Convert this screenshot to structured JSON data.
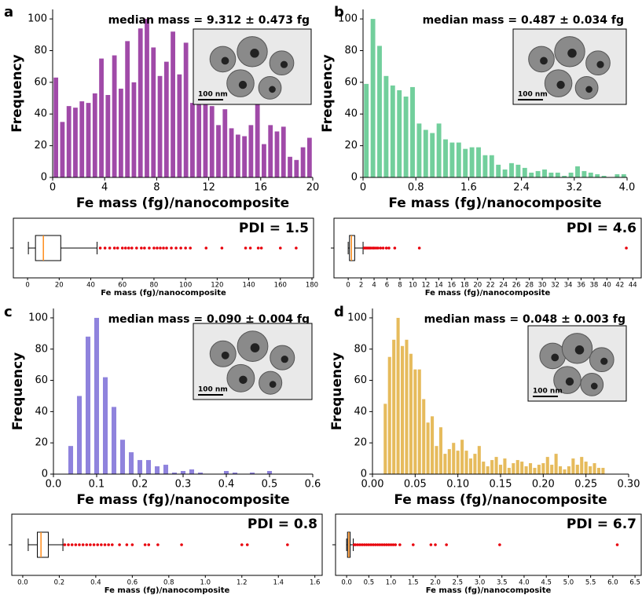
{
  "chart_data": [
    {
      "type": "histogram",
      "panel_label": "a",
      "title": "median mass = 9.312 ± 0.473 fg",
      "xlabel": "Fe mass (fg)/nanocomposite",
      "ylabel": "Frequency",
      "color": "#a04aa8",
      "inset_scale_label": "100 nm",
      "bins": [
        0,
        0.5,
        1,
        1.5,
        2,
        2.5,
        3,
        3.5,
        4,
        4.5,
        5,
        5.5,
        6,
        6.5,
        7,
        7.5,
        8,
        8.5,
        9,
        9.5,
        10,
        10.5,
        11,
        11.5,
        12,
        12.5,
        13,
        13.5,
        14,
        14.5,
        15,
        15.5,
        16,
        16.5,
        17,
        17.5,
        18,
        18.5,
        19,
        19.5,
        20
      ],
      "values": [
        63,
        35,
        45,
        44,
        48,
        47,
        53,
        75,
        52,
        77,
        56,
        86,
        60,
        94,
        100,
        82,
        64,
        73,
        92,
        65,
        85,
        47,
        57,
        56,
        45,
        33,
        43,
        31,
        27,
        26,
        33,
        47,
        21,
        33,
        29,
        32,
        13,
        11,
        19,
        25
      ],
      "xlim": [
        0,
        20
      ],
      "xticks": [
        0,
        4,
        8,
        12,
        16,
        20
      ],
      "ylim": [
        0,
        106
      ],
      "yticks": [
        0,
        20,
        40,
        60,
        80,
        100
      ]
    },
    {
      "type": "histogram",
      "panel_label": "b",
      "title": "median mass = 0.487 ± 0.034  fg",
      "xlabel": "Fe mass (fg)/nanocomposite",
      "ylabel": "Frequency",
      "color": "#72cf9c",
      "inset_scale_label": "100 nm",
      "bins": [
        0,
        0.1,
        0.2,
        0.3,
        0.4,
        0.5,
        0.6,
        0.7,
        0.8,
        0.9,
        1.0,
        1.1,
        1.2,
        1.3,
        1.4,
        1.5,
        1.6,
        1.7,
        1.8,
        1.9,
        2.0,
        2.1,
        2.2,
        2.3,
        2.4,
        2.5,
        2.6,
        2.7,
        2.8,
        2.9,
        3.0,
        3.1,
        3.2,
        3.3,
        3.4,
        3.5,
        3.6,
        3.7,
        3.8,
        3.9,
        4.0
      ],
      "values": [
        59,
        100,
        83,
        64,
        58,
        55,
        51,
        57,
        34,
        30,
        28,
        34,
        24,
        22,
        22,
        18,
        19,
        19,
        14,
        14,
        8,
        5,
        9,
        8,
        6,
        3,
        4,
        5,
        3,
        3,
        1,
        3,
        7,
        4,
        3,
        2,
        1,
        0,
        2,
        2
      ],
      "xlim": [
        0,
        4
      ],
      "xticks": [
        0,
        0.8,
        1.6,
        2.4,
        3.2,
        {
          "value": 4,
          "label": "4.0"
        }
      ],
      "ylim": [
        0,
        106
      ],
      "yticks": [
        0,
        20,
        40,
        60,
        80,
        100
      ]
    },
    {
      "type": "box",
      "text": "PDI = 1.5",
      "xlabel": "Fe mass (fg)/nanocomposite",
      "color": "#ff8c1a",
      "outlier_color": "#e8000b",
      "whisker_low": 0.5,
      "q1": 5,
      "median": 10,
      "q3": 21,
      "whisker_high": 44,
      "outliers": [
        46,
        49,
        52,
        55,
        57,
        60,
        62,
        64,
        66,
        69,
        72,
        74,
        77,
        80,
        82,
        84,
        86,
        88,
        91,
        94,
        97,
        100,
        103,
        113,
        123,
        138,
        141,
        146,
        148,
        160,
        170
      ],
      "xlim": [
        -9,
        181
      ],
      "xticks": [
        0,
        20,
        40,
        60,
        80,
        100,
        120,
        140,
        160,
        180
      ]
    },
    {
      "type": "box",
      "text": "PDI = 4.6",
      "xlabel": "Fe mass (fg)/nanocomposite",
      "color": "#ff8c1a",
      "outlier_color": "#e8000b",
      "whisker_low": 0,
      "q1": 0.2,
      "median": 0.5,
      "q3": 1.0,
      "whisker_high": 2.3,
      "outliers": [
        2.5,
        2.7,
        2.9,
        3.1,
        3.3,
        3.5,
        3.8,
        4.0,
        4.3,
        4.6,
        5.0,
        5.4,
        5.9,
        6.3,
        7.2,
        11.0,
        43.0
      ],
      "xlim": [
        -2.2,
        45.3
      ],
      "xticks": [
        0,
        2,
        4,
        6,
        8,
        10,
        12,
        14,
        16,
        18,
        20,
        22,
        24,
        26,
        28,
        30,
        32,
        34,
        36,
        38,
        40,
        42,
        44
      ]
    },
    {
      "type": "histogram",
      "panel_label": "c",
      "title": "median mass = 0.090 ± 0.004 fg",
      "xlabel": "Fe mass (fg)/nanocomposite",
      "ylabel": "Frequency",
      "color": "#8f83dd",
      "inset_scale_label": "100 nm",
      "bins": [
        0.03,
        0.05,
        0.07,
        0.09,
        0.11,
        0.13,
        0.15,
        0.17,
        0.19,
        0.21,
        0.23,
        0.25,
        0.27,
        0.29,
        0.31,
        0.33,
        0.35,
        0.37,
        0.39,
        0.41,
        0.43,
        0.45,
        0.47,
        0.49,
        0.51,
        0.53
      ],
      "values": [
        18,
        50,
        88,
        100,
        62,
        43,
        22,
        14,
        9,
        9,
        5,
        6,
        1,
        2,
        3,
        1,
        0,
        0,
        2,
        1,
        0,
        1,
        0,
        2,
        0
      ],
      "xlim": [
        0,
        0.6
      ],
      "xticks": [
        {
          "value": 0,
          "label": "0.0"
        },
        0.1,
        0.2,
        0.3,
        0.4,
        0.5,
        0.6
      ],
      "ylim": [
        0,
        106
      ],
      "yticks": [
        0,
        20,
        40,
        60,
        80,
        100
      ]
    },
    {
      "type": "histogram",
      "panel_label": "d",
      "title": "median mass = 0.048 ± 0.003 fg",
      "xlabel": "Fe mass (fg)/nanocomposite",
      "ylabel": "Frequency",
      "color": "#e6bb5c",
      "inset_scale_label": "100 nm",
      "bins": [
        0.0125,
        0.0175,
        0.0225,
        0.0275,
        0.0325,
        0.0375,
        0.0425,
        0.0475,
        0.0525,
        0.0575,
        0.0625,
        0.0675,
        0.0725,
        0.0775,
        0.0825,
        0.0875,
        0.0925,
        0.0975,
        0.1025,
        0.1075,
        0.1125,
        0.1175,
        0.1225,
        0.1275,
        0.1325,
        0.1375,
        0.1425,
        0.1475,
        0.1525,
        0.1575,
        0.1625,
        0.1675,
        0.1725,
        0.1775,
        0.1825,
        0.1875,
        0.1925,
        0.1975,
        0.2025,
        0.2075,
        0.2125,
        0.2175,
        0.2225,
        0.2275,
        0.2325,
        0.2375,
        0.2425,
        0.2475,
        0.2525,
        0.2575,
        0.2625,
        0.2675,
        0.2725
      ],
      "values": [
        45,
        75,
        86,
        100,
        82,
        86,
        77,
        67,
        67,
        48,
        33,
        37,
        18,
        30,
        13,
        16,
        20,
        15,
        22,
        15,
        10,
        13,
        18,
        8,
        5,
        9,
        11,
        6,
        10,
        4,
        7,
        9,
        8,
        5,
        7,
        4,
        6,
        7,
        11,
        6,
        13,
        5,
        3,
        5,
        10,
        6,
        11,
        8,
        5,
        7,
        4,
        4
      ],
      "xlim": [
        0,
        0.3
      ],
      "xticks": [
        {
          "value": 0,
          "label": "0.00"
        },
        0.05,
        {
          "value": 0.1,
          "label": "0.10"
        },
        0.15,
        {
          "value": 0.2,
          "label": "0.20"
        },
        0.25,
        {
          "value": 0.3,
          "label": "0.30"
        }
      ],
      "ylim": [
        0,
        106
      ],
      "yticks": [
        0,
        20,
        40,
        60,
        80,
        100
      ]
    },
    {
      "type": "box",
      "text": "PDI = 0.8",
      "xlabel": "Fe mass (fg)/nanocomposite",
      "color": "#ff8c1a",
      "outlier_color": "#e8000b",
      "whisker_low": 0.03,
      "q1": 0.08,
      "median": 0.1,
      "q3": 0.14,
      "whisker_high": 0.22,
      "outliers": [
        0.23,
        0.25,
        0.27,
        0.29,
        0.31,
        0.33,
        0.35,
        0.37,
        0.39,
        0.41,
        0.43,
        0.45,
        0.47,
        0.49,
        0.53,
        0.57,
        0.6,
        0.67,
        0.69,
        0.74,
        0.87,
        1.2,
        1.23,
        1.45
      ],
      "xlim": [
        -0.06,
        1.64
      ],
      "xticks": [
        {
          "value": 0,
          "label": "0.0"
        },
        0.2,
        0.4,
        0.6,
        0.8,
        {
          "value": 1,
          "label": "1.0"
        },
        1.2,
        1.4,
        1.6
      ]
    },
    {
      "type": "box",
      "text": "PDI = 6.7",
      "xlabel": "Fe mass (fg)/nanocomposite",
      "color": "#ff8c1a",
      "outlier_color": "#e8000b",
      "whisker_low": 0,
      "q1": 0.02,
      "median": 0.05,
      "q3": 0.08,
      "whisker_high": 0.15,
      "outliers": [
        0.17,
        0.2,
        0.25,
        0.3,
        0.35,
        0.4,
        0.45,
        0.5,
        0.55,
        0.6,
        0.65,
        0.7,
        0.75,
        0.8,
        0.85,
        0.9,
        0.95,
        1.0,
        1.05,
        1.1,
        1.2,
        1.5,
        1.9,
        2.0,
        2.25,
        3.45,
        6.1
      ],
      "xlim": [
        -0.25,
        6.64
      ],
      "xticks": [
        {
          "value": 0,
          "label": "0.0"
        },
        0.5,
        {
          "value": 1,
          "label": "1.0"
        },
        1.5,
        {
          "value": 2,
          "label": "2.0"
        },
        2.5,
        {
          "value": 3,
          "label": "3.0"
        },
        3.5,
        {
          "value": 4,
          "label": "4.0"
        },
        4.5,
        {
          "value": 5,
          "label": "5.0"
        },
        5.5,
        {
          "value": 6,
          "label": "6.0"
        },
        6.5
      ]
    }
  ]
}
